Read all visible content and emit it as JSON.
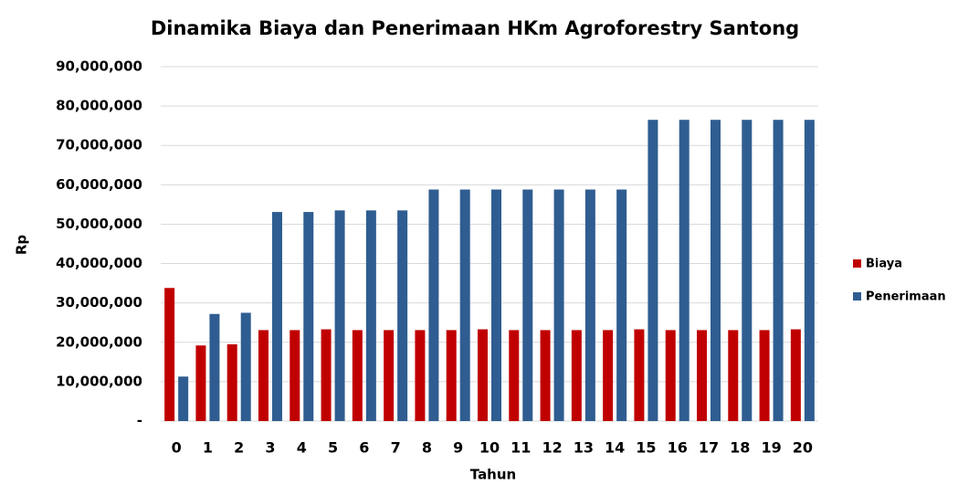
{
  "chart_data": {
    "type": "bar",
    "title": "Dinamika Biaya dan Penerimaan HKm Agroforestry Santong",
    "x_label": "Tahun",
    "y_label": "Rp",
    "categories": [
      "0",
      "1",
      "2",
      "3",
      "4",
      "5",
      "6",
      "7",
      "8",
      "9",
      "10",
      "11",
      "12",
      "13",
      "14",
      "15",
      "16",
      "17",
      "18",
      "19",
      "20"
    ],
    "series": [
      {
        "name": "Biaya",
        "color": "#c00000",
        "values": [
          33800000,
          19200000,
          19500000,
          23100000,
          23100000,
          23300000,
          23100000,
          23100000,
          23100000,
          23100000,
          23300000,
          23100000,
          23100000,
          23100000,
          23100000,
          23300000,
          23100000,
          23100000,
          23100000,
          23100000,
          23300000
        ]
      },
      {
        "name": "Penerimaan",
        "color": "#2f5d91",
        "values": [
          11300000,
          27200000,
          27500000,
          53100000,
          53100000,
          53500000,
          53500000,
          53500000,
          58800000,
          58800000,
          58800000,
          58800000,
          58800000,
          58800000,
          58800000,
          76500000,
          76500000,
          76500000,
          76500000,
          76500000,
          76500000
        ]
      }
    ],
    "ylim": [
      0,
      90000000
    ],
    "yticks": [
      {
        "value": 0,
        "label": "-"
      },
      {
        "value": 10000000,
        "label": "10,000,000"
      },
      {
        "value": 20000000,
        "label": "20,000,000"
      },
      {
        "value": 30000000,
        "label": "30,000,000"
      },
      {
        "value": 40000000,
        "label": "40,000,000"
      },
      {
        "value": 50000000,
        "label": "50,000,000"
      },
      {
        "value": 60000000,
        "label": "60,000,000"
      },
      {
        "value": 70000000,
        "label": "70,000,000"
      },
      {
        "value": 80000000,
        "label": "80,000,000"
      },
      {
        "value": 90000000,
        "label": "90,000,000"
      }
    ],
    "grid": true,
    "legend": "right"
  }
}
